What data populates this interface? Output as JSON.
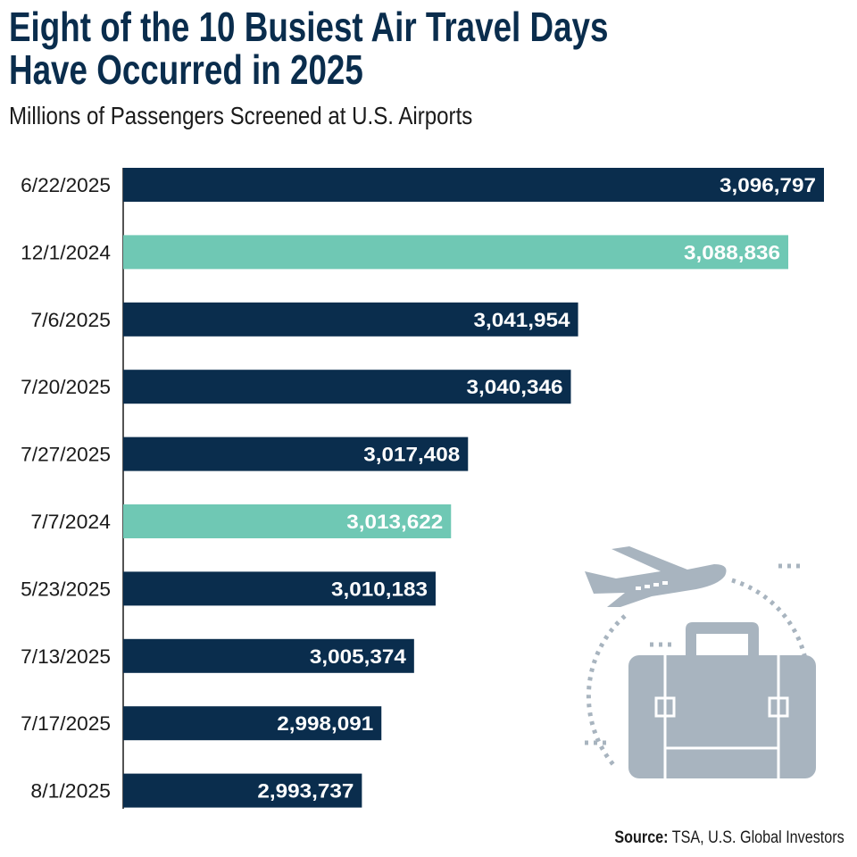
{
  "chart_data": {
    "type": "bar",
    "orientation": "horizontal",
    "title": "Eight of the 10 Busiest Air Travel Days Have Occurred in 2025",
    "title_lines": [
      "Eight of the 10 Busiest Air Travel Days",
      "Have Occurred in 2025"
    ],
    "subtitle": "Millions of Passengers Screened at U.S. Airports",
    "categories": [
      "6/22/2025",
      "12/1/2024",
      "7/6/2025",
      "7/20/2025",
      "7/27/2025",
      "7/7/2024",
      "5/23/2025",
      "7/13/2025",
      "7/17/2025",
      "8/1/2025"
    ],
    "values": [
      3096797,
      3088836,
      3041954,
      3040346,
      3017408,
      3013622,
      3010183,
      3005374,
      2998091,
      2993737
    ],
    "labels": [
      "3,096,797",
      "3,088,836",
      "3,041,954",
      "3,040,346",
      "3,017,408",
      "3,013,622",
      "3,010,183",
      "3,005,374",
      "2,998,091",
      "2,993,737"
    ],
    "highlight": [
      false,
      true,
      false,
      false,
      false,
      true,
      false,
      false,
      false,
      false
    ],
    "xlim": [
      2940500,
      3096797
    ],
    "grid": false,
    "colors": {
      "year2025": "#0a2d4d",
      "year2024": "#6fc8b4",
      "icon": "#a8b4bf"
    }
  },
  "source": {
    "label": "Source:",
    "text": " TSA, U.S. Global Investors"
  }
}
